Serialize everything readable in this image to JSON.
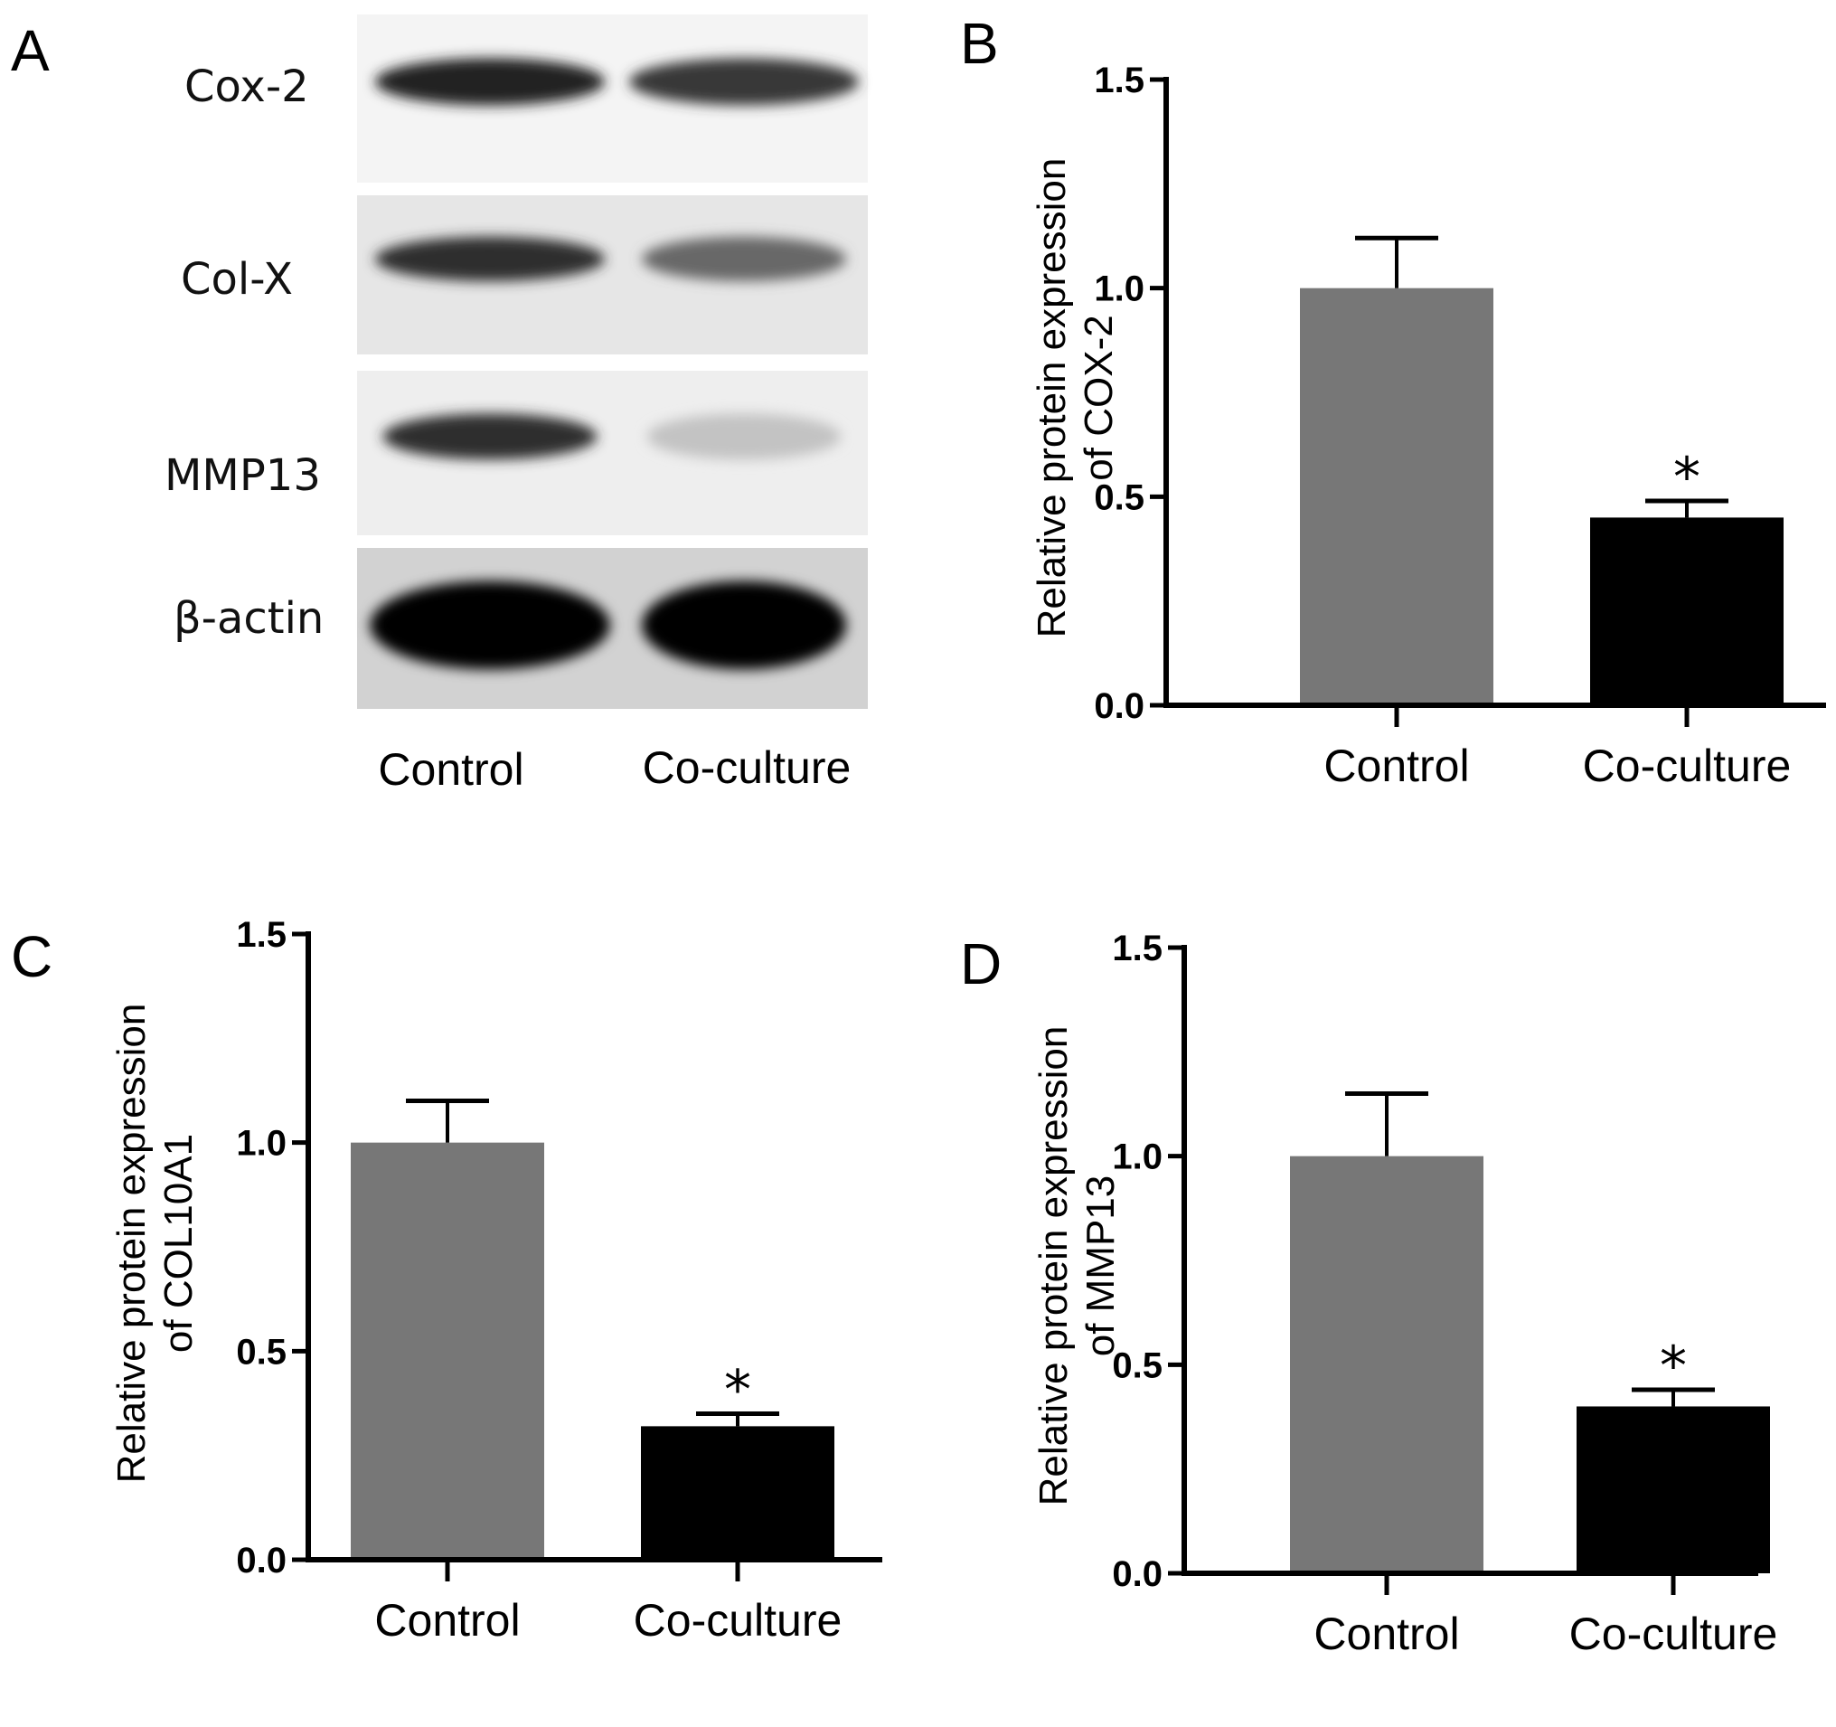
{
  "panels": {
    "a_label": "A",
    "b_label": "B",
    "c_label": "C",
    "d_label": "D"
  },
  "blot": {
    "lanes": [
      "Control",
      "Co-culture"
    ],
    "proteins": [
      {
        "name": "Cox-2",
        "intensity": [
          0.85,
          0.75
        ],
        "band_width": [
          0.45,
          0.45
        ],
        "background": "#f4f4f4"
      },
      {
        "name": "Col-X",
        "intensity": [
          0.8,
          0.55
        ],
        "band_width": [
          0.45,
          0.4
        ],
        "background": "#e6e6e6"
      },
      {
        "name": "MMP13",
        "intensity": [
          0.8,
          0.15
        ],
        "band_width": [
          0.42,
          0.38
        ],
        "background": "#eeeeee"
      },
      {
        "name": "β-actin",
        "intensity": [
          1.0,
          1.0
        ],
        "band_width": [
          0.47,
          0.4
        ],
        "background": "#d2d2d2"
      }
    ]
  },
  "chart_data": [
    {
      "panel": "B",
      "type": "bar",
      "categories": [
        "Control",
        "Co-culture"
      ],
      "values": [
        1.0,
        0.45
      ],
      "errors": [
        0.12,
        0.04
      ],
      "significance": [
        "",
        "*"
      ],
      "ylabel_line1": "Relative protein expression",
      "ylabel_line2": "of COX-2",
      "ylim": [
        0,
        1.5
      ],
      "yticks": [
        "0.0",
        "0.5",
        "1.0",
        "1.5"
      ],
      "bar_colors": [
        "#777777",
        "#000000"
      ]
    },
    {
      "panel": "C",
      "type": "bar",
      "categories": [
        "Control",
        "Co-culture"
      ],
      "values": [
        1.0,
        0.32
      ],
      "errors": [
        0.1,
        0.03
      ],
      "significance": [
        "",
        "*"
      ],
      "ylabel_line1": "Relative protein expression",
      "ylabel_line2": "of COL10A1",
      "ylim": [
        0,
        1.5
      ],
      "yticks": [
        "0.0",
        "0.5",
        "1.0",
        "1.5"
      ],
      "bar_colors": [
        "#777777",
        "#000000"
      ]
    },
    {
      "panel": "D",
      "type": "bar",
      "categories": [
        "Control",
        "Co-culture"
      ],
      "values": [
        1.0,
        0.4
      ],
      "errors": [
        0.15,
        0.04
      ],
      "significance": [
        "",
        "*"
      ],
      "ylabel_line1": "Relative protein expression",
      "ylabel_line2": "of MMP13",
      "ylim": [
        0,
        1.5
      ],
      "yticks": [
        "0.0",
        "0.5",
        "1.0",
        "1.5"
      ],
      "bar_colors": [
        "#777777",
        "#000000"
      ]
    }
  ]
}
